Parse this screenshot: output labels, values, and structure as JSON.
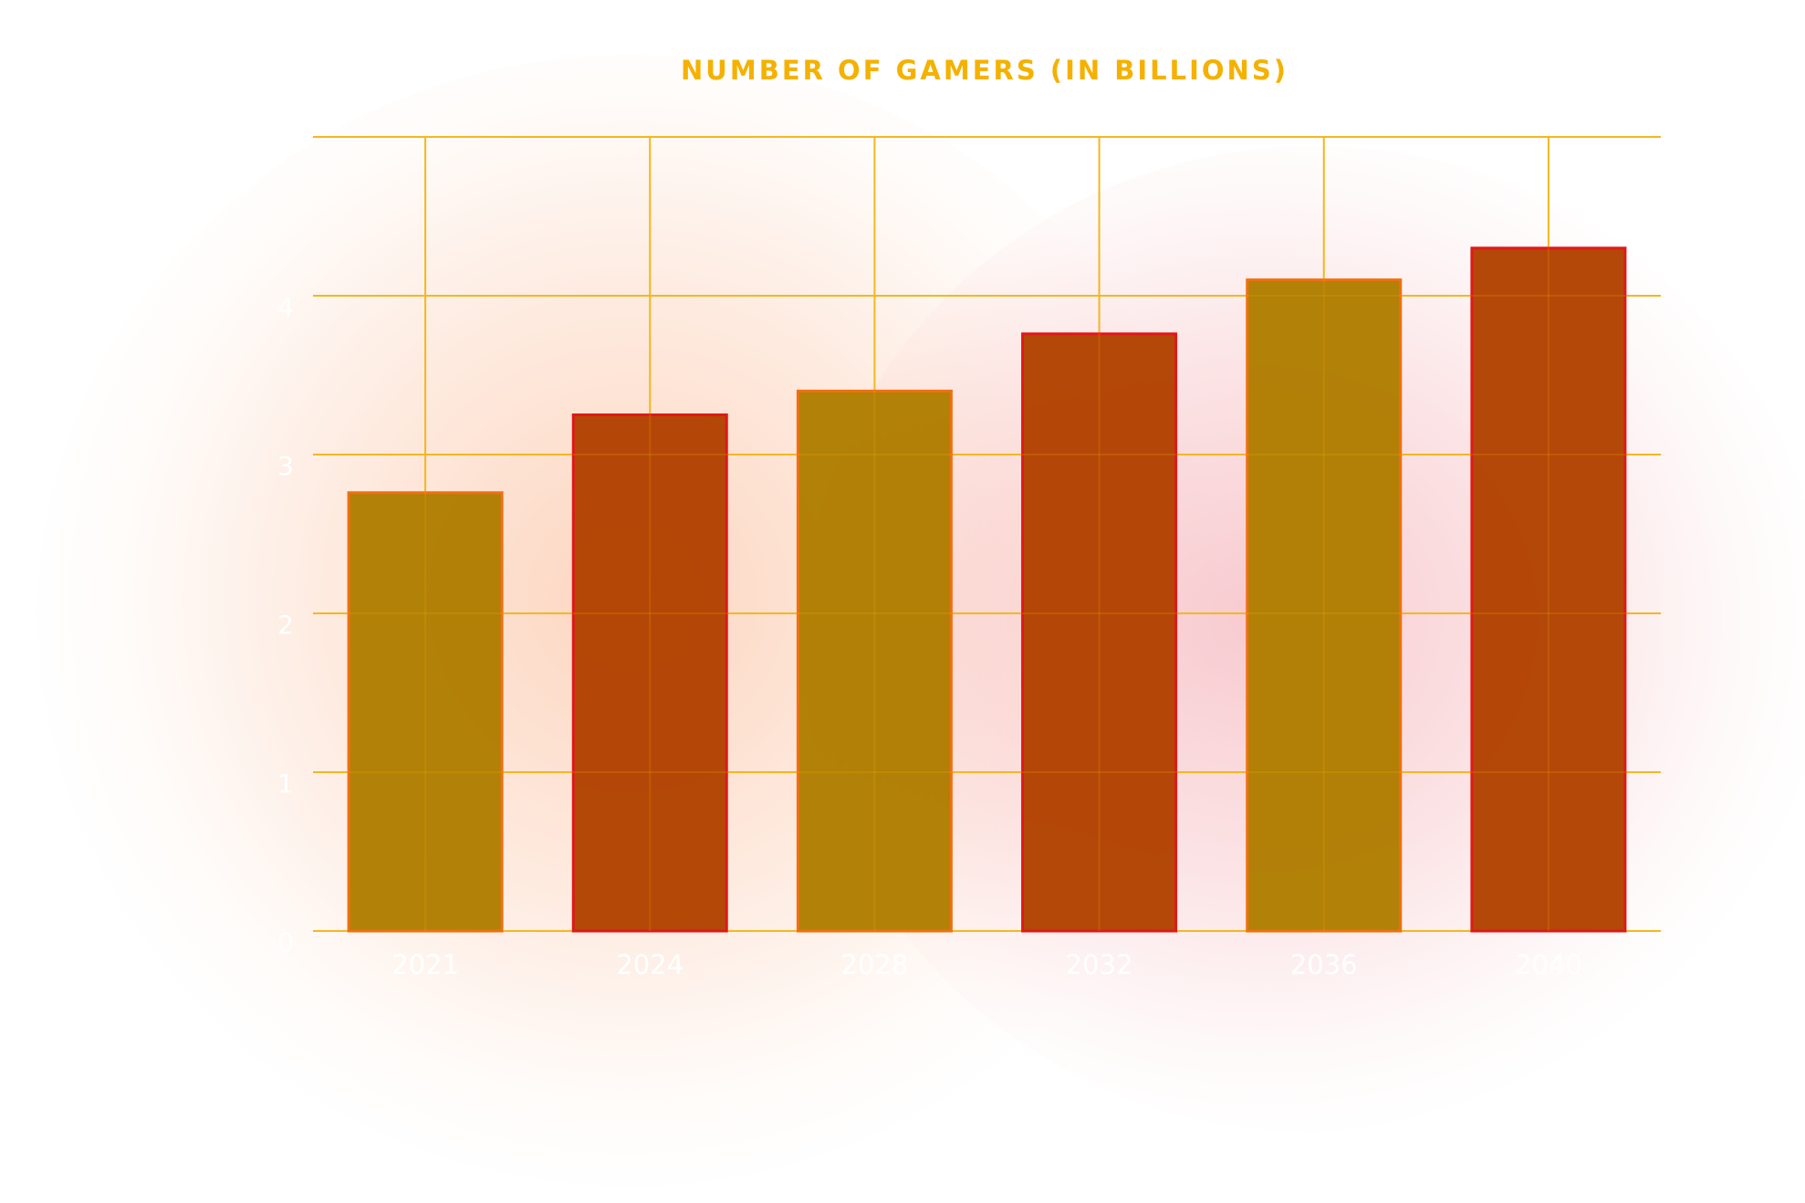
{
  "chart_data": {
    "type": "bar",
    "title": "NUMBER OF GAMERS (IN BILLIONS)",
    "xlabel": "",
    "ylabel": "",
    "categories": [
      "2021",
      "2024",
      "2028",
      "2032",
      "2036",
      "2040"
    ],
    "values": [
      2.76,
      3.25,
      3.4,
      3.76,
      4.1,
      4.3
    ],
    "ylim": [
      0,
      5
    ],
    "yticks": [
      "0",
      "1",
      "2",
      "3",
      "4"
    ],
    "grid": true,
    "legend": "none",
    "colors": {
      "bar_odd_fill": "#b07d00",
      "bar_odd_stroke": "#f07010",
      "bar_even_fill": "#b24200",
      "bar_even_stroke": "#e01818",
      "grid": "#f5b820",
      "title": "#f5b100",
      "tick_label": "#ffffff"
    }
  }
}
